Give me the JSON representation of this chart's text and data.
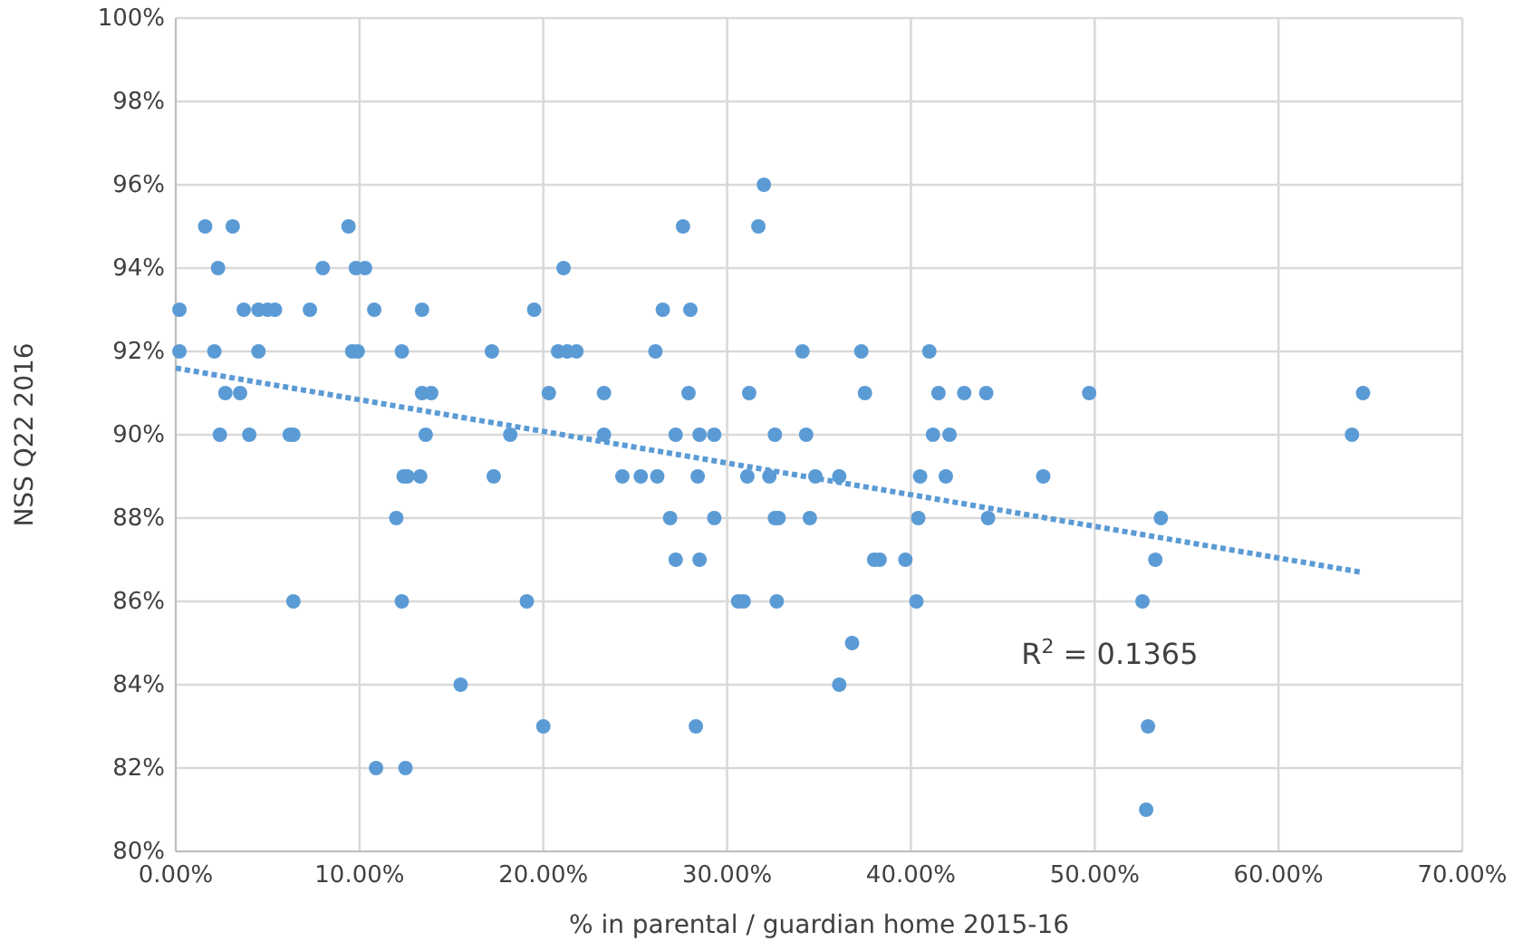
{
  "chart_data": {
    "type": "scatter",
    "xlabel": "% in parental / guardian home 2015-16",
    "ylabel": "NSS Q22 2016",
    "xlim": [
      0,
      70
    ],
    "ylim": [
      80,
      100
    ],
    "xticks": [
      {
        "value": 0,
        "label": "0.00%"
      },
      {
        "value": 10,
        "label": "10.00%"
      },
      {
        "value": 20,
        "label": "20.00%"
      },
      {
        "value": 30,
        "label": "30.00%"
      },
      {
        "value": 40,
        "label": "40.00%"
      },
      {
        "value": 50,
        "label": "50.00%"
      },
      {
        "value": 60,
        "label": "60.00%"
      },
      {
        "value": 70,
        "label": "70.00%"
      }
    ],
    "yticks": [
      {
        "value": 80,
        "label": "80%"
      },
      {
        "value": 82,
        "label": "82%"
      },
      {
        "value": 84,
        "label": "84%"
      },
      {
        "value": 86,
        "label": "86%"
      },
      {
        "value": 88,
        "label": "88%"
      },
      {
        "value": 90,
        "label": "90%"
      },
      {
        "value": 92,
        "label": "92%"
      },
      {
        "value": 94,
        "label": "94%"
      },
      {
        "value": 96,
        "label": "96%"
      },
      {
        "value": 98,
        "label": "98%"
      },
      {
        "value": 100,
        "label": "100%"
      }
    ],
    "grid": true,
    "annotations": [
      "R$^{2}$ = 0.1365"
    ],
    "series": [
      {
        "type": "scatter",
        "color": "#5b9bd5",
        "marker": "circle",
        "x": [
          32.0,
          1.6,
          3.1,
          9.4,
          27.6,
          31.7,
          2.3,
          8.0,
          9.8,
          10.3,
          21.1,
          0.2,
          3.7,
          4.5,
          5.0,
          5.4,
          7.3,
          10.8,
          13.4,
          19.5,
          26.5,
          28.0,
          0.2,
          2.1,
          4.5,
          9.6,
          9.9,
          12.3,
          17.2,
          20.8,
          21.3,
          21.8,
          26.1,
          34.1,
          37.3,
          41.0,
          2.7,
          3.5,
          13.4,
          13.9,
          20.3,
          23.3,
          27.9,
          31.2,
          37.5,
          41.5,
          42.9,
          44.1,
          49.7,
          64.6,
          2.4,
          4.0,
          6.2,
          6.4,
          13.6,
          18.2,
          23.3,
          27.2,
          28.5,
          29.3,
          32.6,
          34.3,
          41.2,
          42.1,
          64.0,
          12.4,
          12.6,
          13.3,
          17.3,
          24.3,
          25.3,
          26.2,
          28.4,
          31.1,
          32.3,
          34.8,
          36.1,
          40.5,
          41.9,
          47.2,
          12.0,
          26.9,
          29.3,
          32.6,
          32.8,
          34.5,
          40.4,
          44.2,
          53.6,
          27.2,
          28.5,
          38.0,
          38.3,
          39.7,
          53.3,
          6.4,
          12.3,
          19.1,
          30.6,
          30.9,
          32.7,
          40.3,
          52.6,
          36.8,
          15.5,
          36.1,
          20.0,
          28.3,
          52.9,
          10.9,
          12.5,
          52.8
        ],
        "values": [
          96,
          95,
          95,
          95,
          95,
          95,
          94,
          94,
          94,
          94,
          94,
          93,
          93,
          93,
          93,
          93,
          93,
          93,
          93,
          93,
          93,
          93,
          92,
          92,
          92,
          92,
          92,
          92,
          92,
          92,
          92,
          92,
          92,
          92,
          92,
          92,
          91,
          91,
          91,
          91,
          91,
          91,
          91,
          91,
          91,
          91,
          91,
          91,
          91,
          91,
          90,
          90,
          90,
          90,
          90,
          90,
          90,
          90,
          90,
          90,
          90,
          90,
          90,
          90,
          90,
          89,
          89,
          89,
          89,
          89,
          89,
          89,
          89,
          89,
          89,
          89,
          89,
          89,
          89,
          89,
          88,
          88,
          88,
          88,
          88,
          88,
          88,
          88,
          88,
          87,
          87,
          87,
          87,
          87,
          87,
          86,
          86,
          86,
          86,
          86,
          86,
          86,
          86,
          85,
          84,
          84,
          83,
          83,
          83,
          82,
          82,
          81
        ]
      },
      {
        "type": "line",
        "color": "#5b9bd5",
        "marker": "none",
        "line_style": "dotted",
        "x": [
          0,
          64.5
        ],
        "values": [
          91.6,
          86.7
        ]
      }
    ]
  }
}
